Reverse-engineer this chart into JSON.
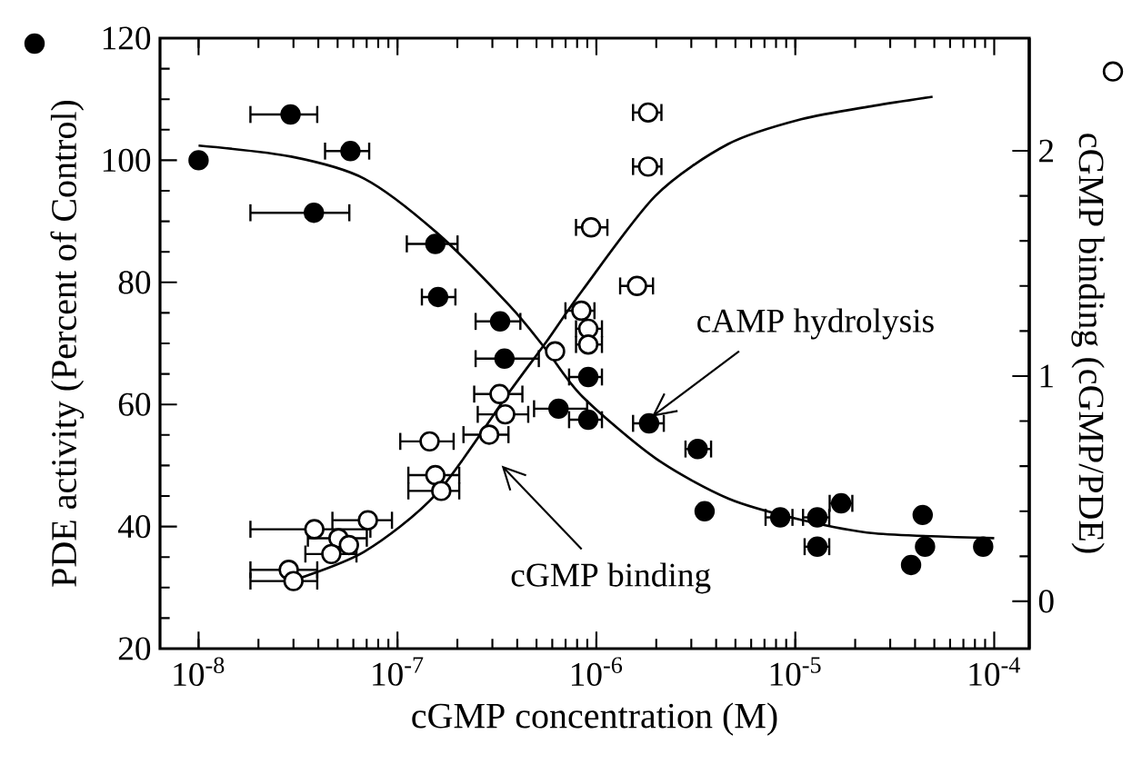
{
  "chart_data": {
    "type": "scatter",
    "xlabel": "cGMP concentration (M)",
    "ylabel": "PDE activity (Percent of Control)",
    "y2label": "cGMP binding (cGMP/PDE)",
    "log": "x",
    "marker": "circle",
    "grid": false,
    "xlim": [
      6.4e-09,
      0.00015
    ],
    "xticks": [
      {
        "value": 1e-08,
        "label": "10$^{-8}$"
      },
      {
        "value": 1e-07,
        "label": "10$^{-7}$"
      },
      {
        "value": 1e-06,
        "label": "10$^{-6}$"
      },
      {
        "value": 1e-05,
        "label": "10$^{-5}$"
      },
      {
        "value": 0.0001,
        "label": "10$^{-4}$"
      }
    ],
    "ylim": [
      20,
      120
    ],
    "yticks": [
      20,
      40,
      60,
      80,
      100,
      120
    ],
    "y2lim": [
      -0.21,
      2.5
    ],
    "y2ticks": [
      0,
      1,
      2
    ],
    "series": [
      {
        "color": "#000000",
        "x": [
          1e-08,
          2.9e-08,
          5.8e-08,
          3.8e-08,
          1.55e-07,
          1.6e-07,
          3.28e-07,
          3.45e-07,
          6.45e-07,
          9.1e-07,
          9.1e-07,
          1.84e-06,
          3.23e-06,
          3.5e-06,
          8.4e-06,
          1.29e-05,
          1.7e-05,
          1.29e-05,
          4.37e-05,
          4.49e-05,
          3.82e-05,
          8.8e-05
        ],
        "values": [
          100,
          107.5,
          101.5,
          91.4,
          86.3,
          77.6,
          73.6,
          67.5,
          59.3,
          64.5,
          57.5,
          56.9,
          52.7,
          42.5,
          41.5,
          41.5,
          43.8,
          36.7,
          41.9,
          36.7,
          33.7,
          36.7
        ],
        "xerrors": [
          null,
          [
            1.8e-08,
            4e-08
          ],
          [
            4.27e-08,
            7.3e-08
          ],
          [
            1.8e-08,
            5.8e-08
          ],
          [
            1.1e-07,
            2.03e-07
          ],
          [
            1.31e-07,
            1.98e-07
          ],
          [
            2.44e-07,
            4.2e-07
          ],
          [
            2.44e-07,
            5.2e-07
          ],
          [
            4.8e-07,
            9.1e-07
          ],
          [
            7.2e-07,
            1.08e-06
          ],
          [
            7.2e-07,
            1.08e-06
          ],
          [
            1.51e-06,
            2.21e-06
          ],
          [
            2.77e-06,
            3.82e-06
          ],
          null,
          [
            7e-06,
            9.8e-06
          ],
          [
            1.08e-05,
            1.5e-05
          ],
          [
            1.47e-05,
            1.96e-05
          ],
          [
            1.1e-05,
            1.5e-05
          ],
          null,
          null,
          null,
          null
        ]
      },
      {
        "color": "#ffffff",
        "axis": "y2",
        "x": [
          1.82e-06,
          1.82e-06,
          9.4e-07,
          1.6e-06,
          8.4e-07,
          9.1e-07,
          9.1e-07,
          6.2e-07,
          3.26e-07,
          3.48e-07,
          2.89e-07,
          1.45e-07,
          1.55e-07,
          1.66e-07,
          3.82e-08,
          7.1e-08,
          5.05e-08,
          4.65e-08,
          5.7e-08,
          2.84e-08,
          3e-08
        ],
        "values": [
          2.17,
          1.93,
          1.66,
          1.4,
          1.29,
          1.21,
          1.14,
          1.11,
          0.92,
          0.83,
          0.74,
          0.71,
          0.56,
          0.49,
          0.32,
          0.36,
          0.28,
          0.21,
          0.25,
          0.14,
          0.09
        ],
        "xerrors": [
          [
            1.51e-06,
            2.15e-06
          ],
          [
            1.51e-06,
            2.15e-06
          ],
          [
            7.8e-07,
            1.15e-06
          ],
          [
            1.3e-06,
            1.95e-06
          ],
          [
            6.9e-07,
            9.9e-07
          ],
          [
            7.8e-07,
            1.08e-06
          ],
          [
            7.8e-07,
            1.08e-06
          ],
          null,
          [
            2.4e-07,
            4.3e-07
          ],
          [
            2.5e-07,
            4.6e-07
          ],
          [
            2.12e-07,
            3.66e-07
          ],
          [
            1.02e-07,
            1.94e-07
          ],
          [
            1.12e-07,
            2.07e-07
          ],
          [
            1.12e-07,
            2.07e-07
          ],
          [
            1.8e-08,
            7.4e-08
          ],
          [
            4.65e-08,
            9.5e-08
          ],
          [
            3.5e-08,
            7.1e-08
          ],
          [
            3.4e-08,
            6.3e-08
          ],
          null,
          [
            1.8e-08,
            4e-08
          ],
          [
            1.8e-08,
            4e-08
          ]
        ]
      },
      {
        "type": "line",
        "color": "#000000",
        "marker": "none",
        "x": [
          1e-08,
          2.92e-08,
          6.8e-08,
          1.58e-07,
          3.66e-07,
          5.58e-07,
          8.5e-07,
          1.98e-06,
          4.6e-06,
          1.07e-05,
          2.49e-05,
          0.0001
        ],
        "values": [
          102.4,
          100.6,
          97.0,
          88.1,
          76.2,
          69.0,
          61.3,
          51.2,
          44.6,
          41.1,
          38.9,
          38.1
        ]
      },
      {
        "type": "line",
        "color": "#000000",
        "marker": "none",
        "axis": "y2",
        "x": [
          2.92e-08,
          6.8e-08,
          1.58e-07,
          3.66e-07,
          5.58e-07,
          8.5e-07,
          1.98e-06,
          4.6e-06,
          1.07e-05,
          2.49e-05,
          4.9e-05
        ],
        "values": [
          0.09,
          0.22,
          0.48,
          0.93,
          1.15,
          1.38,
          1.8,
          2.03,
          2.14,
          2.2,
          2.24
        ]
      }
    ],
    "annotations": [
      {
        "text": "cAMP hydrolysis",
        "x": 1.9e-06,
        "y": 58
      },
      "cGMP binding"
    ]
  }
}
